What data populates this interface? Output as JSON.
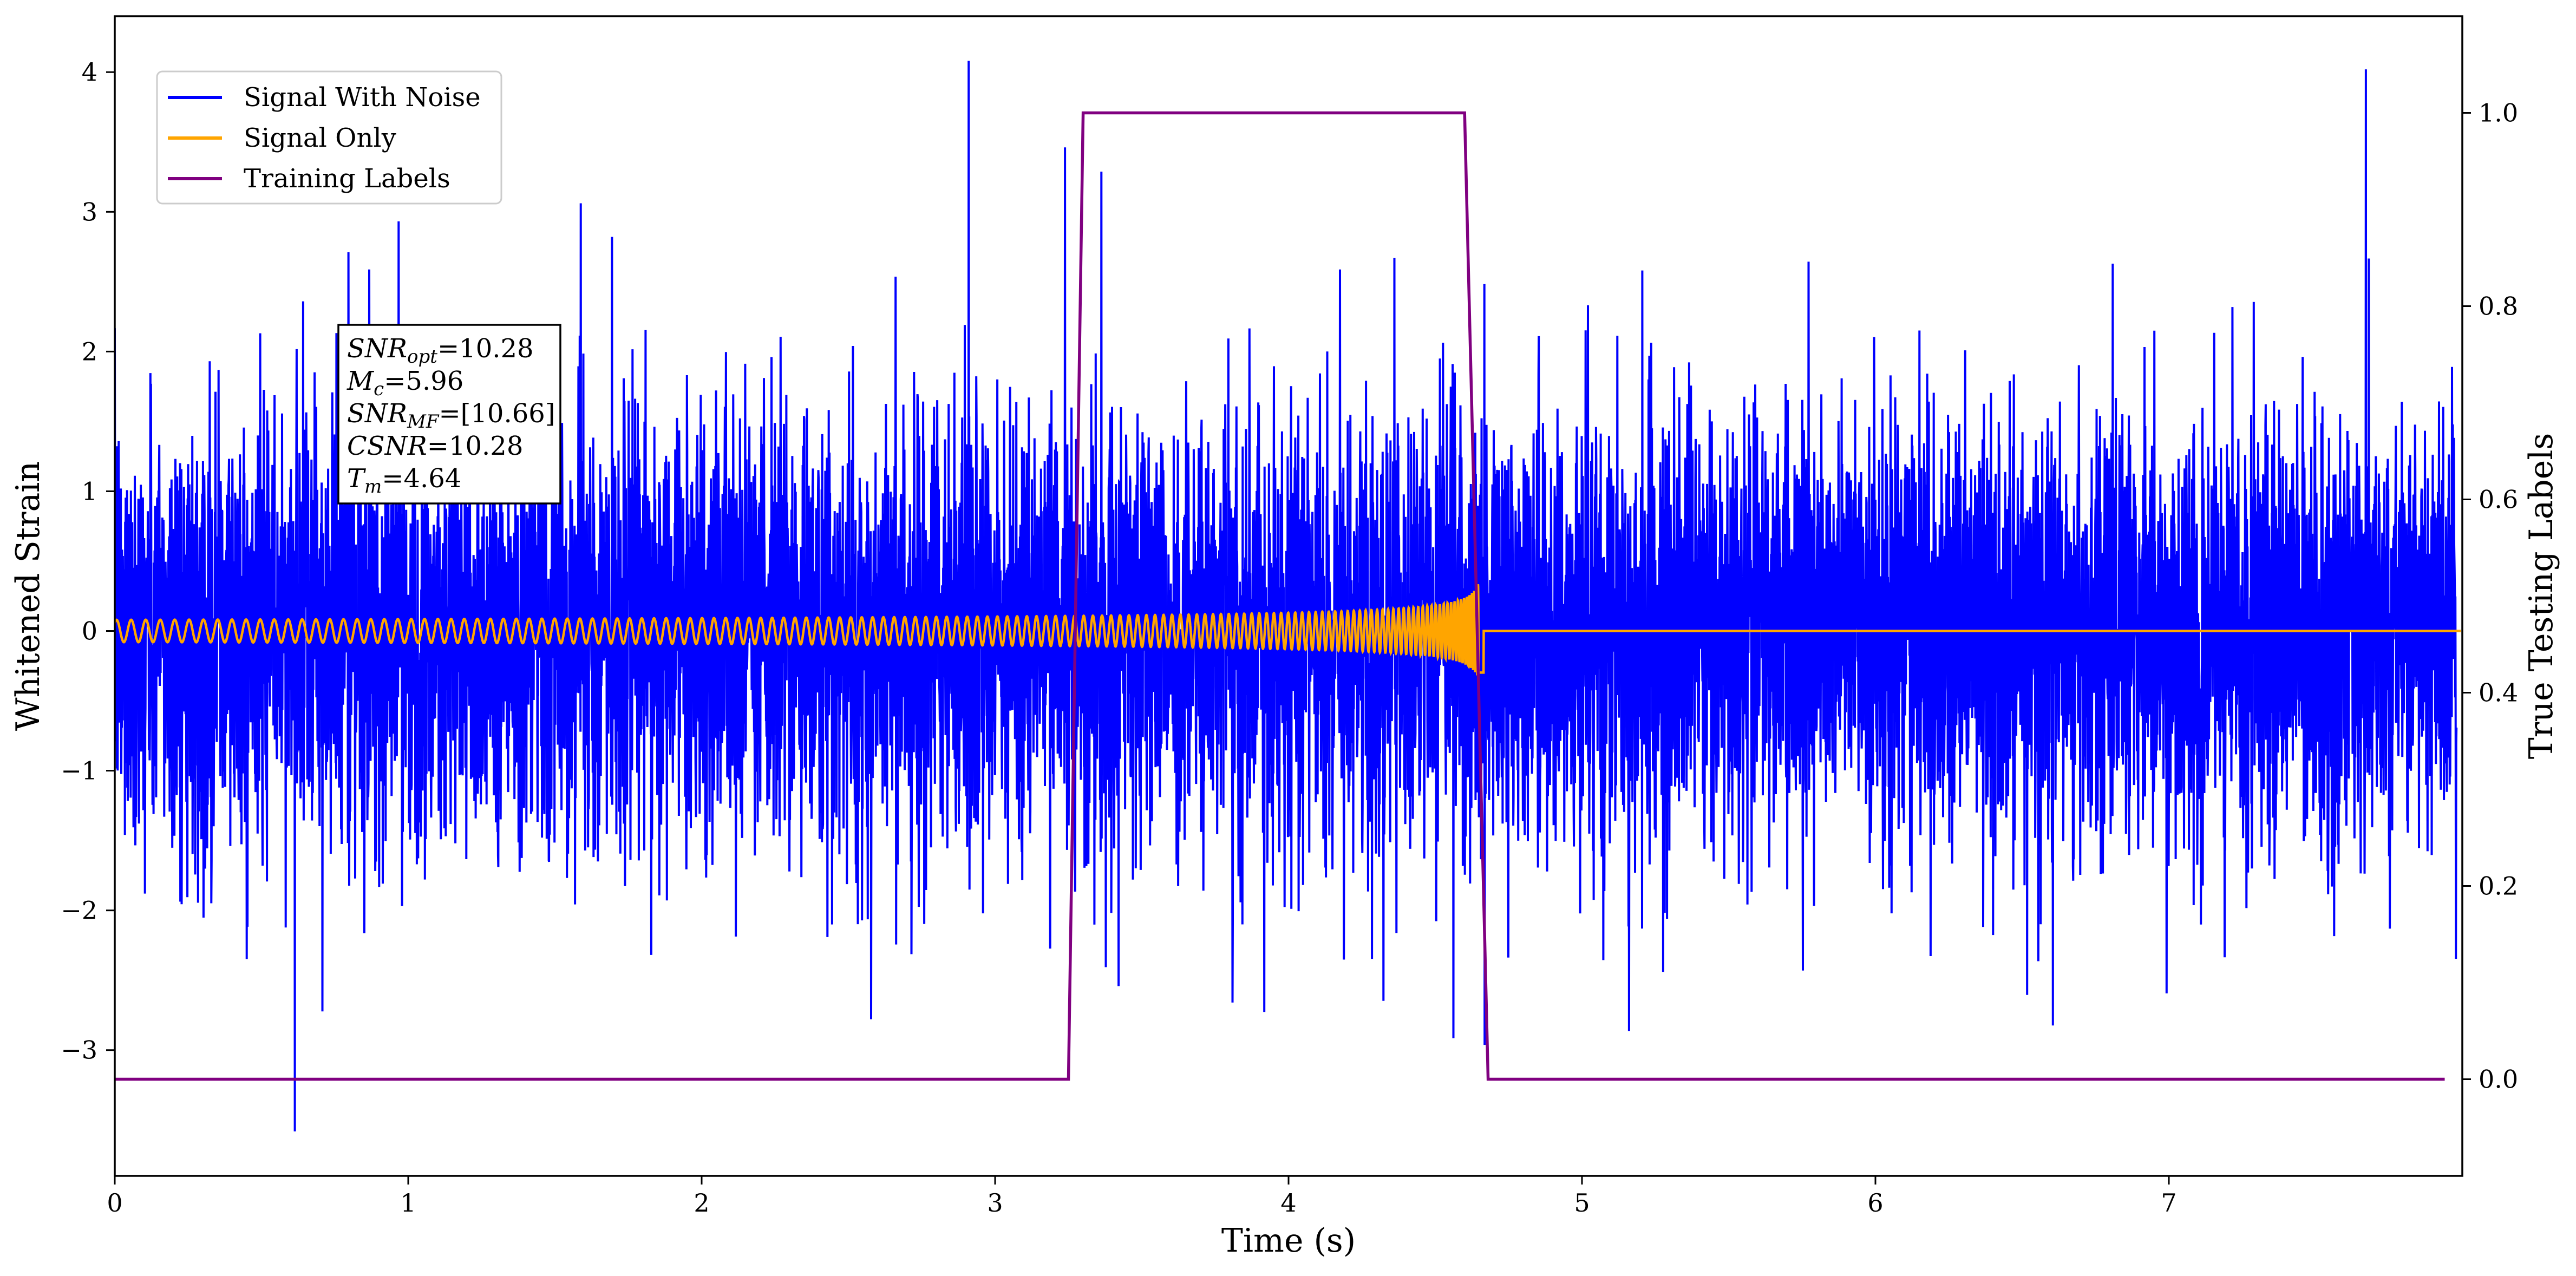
{
  "chart_data": {
    "type": "line",
    "xlabel": "Time (s)",
    "ylabel": "Whitened Strain",
    "ylabel_right": "True Testing Labels",
    "xlim": [
      0,
      8.0
    ],
    "ylim": [
      -3.9,
      4.4
    ],
    "ylim_right": [
      -0.1,
      1.1
    ],
    "xticks": [
      0,
      1,
      2,
      3,
      4,
      5,
      6,
      7
    ],
    "yticks_left": [
      -3,
      -2,
      -1,
      0,
      1,
      2,
      3,
      4
    ],
    "yticks_right": [
      0.0,
      0.2,
      0.4,
      0.6,
      0.8,
      1.0
    ],
    "grid": false,
    "legend_position": "top-left",
    "legend": [
      {
        "name": "Signal With Noise",
        "color": "#0000ff"
      },
      {
        "name": "Signal Only",
        "color": "#ffa500"
      },
      {
        "name": "Training Labels",
        "color": "#800080"
      }
    ],
    "series": [
      {
        "name": "Signal With Noise",
        "color": "#0000ff",
        "axis": "left",
        "description_values": {
          "x_range": [
            0,
            8.0
          ],
          "std": 0.8,
          "max": 4.02,
          "min": -3.5
        }
      },
      {
        "name": "Signal Only",
        "color": "#ffa500",
        "axis": "left",
        "chirp": {
          "x_start": 0,
          "x_merger": 4.64,
          "amp_start": 0.08,
          "amp_peak": 0.95,
          "freq_start_hz": 20
        }
      },
      {
        "name": "Training Labels",
        "color": "#800080",
        "axis": "right",
        "x": [
          0,
          3.25,
          3.3,
          4.6,
          4.68,
          7.94
        ],
        "y": [
          0,
          0,
          1,
          1,
          0,
          0
        ]
      }
    ],
    "annotation": {
      "lines": [
        {
          "sym": "SNR",
          "sub": "opt",
          "value": "=10.28"
        },
        {
          "sym": "M",
          "sub": "c",
          "value": "=5.96"
        },
        {
          "sym": "SNR",
          "sub": "MF",
          "value": "=[10.66]"
        },
        {
          "sym": "CSNR",
          "sub": "",
          "value": "=10.28"
        },
        {
          "sym": "T",
          "sub": "m",
          "value": "=4.64"
        }
      ]
    }
  }
}
